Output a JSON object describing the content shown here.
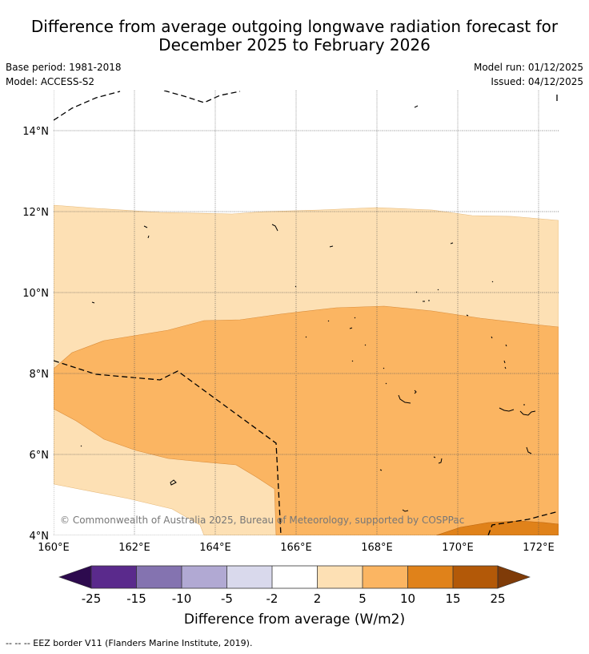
{
  "title": {
    "line1": "Difference from average outgoing longwave radiation forecast for",
    "line2": "December 2025 to February 2026"
  },
  "meta": {
    "base_period": "Base period: 1981-2018",
    "model": "Model: ACCESS-S2",
    "model_run": "Model run: 01/12/2025",
    "issued": "Issued: 04/12/2025"
  },
  "map": {
    "lon_range": [
      160,
      172.5
    ],
    "lat_range": [
      4,
      15
    ],
    "lat_labels": [
      "14°N",
      "12°N",
      "10°N",
      "8°N",
      "6°N",
      "4°N"
    ],
    "lon_labels": [
      "160°E",
      "162°E",
      "164°E",
      "166°E",
      "168°E",
      "170°E",
      "172°E"
    ],
    "copyright": "© Commonwealth of Australia 2025, Bureau of Meteorology, supported by COSPPac"
  },
  "legend": {
    "tick_labels": [
      "-25",
      "-15",
      "-10",
      "-5",
      "-2",
      "2",
      "5",
      "10",
      "15",
      "25"
    ],
    "colors": {
      "lt_neg25": "#2d0a4e",
      "neg25_neg15": "#5a2a8c",
      "neg15_neg10": "#8473b0",
      "neg10_neg5": "#b1a9d3",
      "neg5_neg2": "#d9d9ec",
      "neg2_2": "#ffffff",
      "pos2_5": "#fde0b4",
      "pos5_10": "#fbb562",
      "pos10_15": "#e0821a",
      "pos15_25": "#b35908",
      "gt_25": "#7f3b08"
    },
    "label": "Difference from average (W/m2)"
  },
  "footnote": "--  --  -- EEZ border V11 (Flanders Marine Institute, 2019)."
}
